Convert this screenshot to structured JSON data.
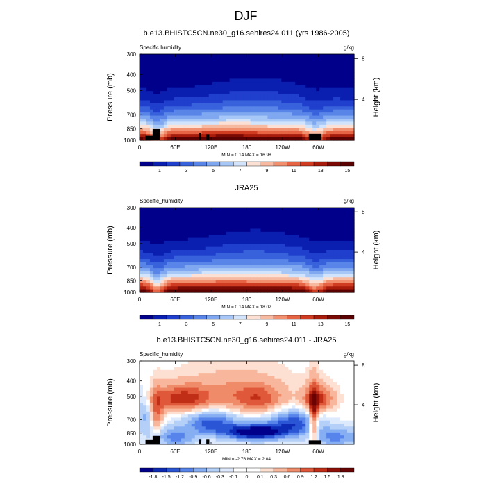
{
  "page": {
    "title": "DJF"
  },
  "colors": {
    "seq": [
      "#00008b",
      "#0a1fb0",
      "#1f3fcc",
      "#3862dc",
      "#5985e8",
      "#7fa8f0",
      "#a7c7f7",
      "#d2e4fb",
      "#fbe0d3",
      "#f7b9a0",
      "#f28f6f",
      "#e66344",
      "#cf3c22",
      "#a81c0c",
      "#7a0a03",
      "#5a0202"
    ],
    "div": [
      "#00008b",
      "#0d2ab5",
      "#2a56d6",
      "#5684eb",
      "#86aef3",
      "#b4cff8",
      "#dde9fc",
      "#ffffff",
      "#ffffff",
      "#fde0d2",
      "#f8b79c",
      "#f08b69",
      "#e0583a",
      "#c12e17",
      "#8f0f06",
      "#6a0303"
    ]
  },
  "chart_data": [
    {
      "type": "heatmap",
      "title": "b.e13.BHISTC5CN.ne30_g16.sehires24.011 (yrs 1986-2005)",
      "left_label": "Specific humidity",
      "right_label": "g/kg",
      "ylabel": "Pressure (mb)",
      "ylabel_right": "Height (km)",
      "x_ticks": [
        "0",
        "60E",
        "120E",
        "180",
        "120W",
        "60W"
      ],
      "x_tick_values": [
        0,
        60,
        120,
        180,
        240,
        300
      ],
      "xlim": [
        0,
        360
      ],
      "y_ticks": [
        "300",
        "400",
        "500",
        "700",
        "850",
        "1000"
      ],
      "y_tick_values": [
        300,
        400,
        500,
        700,
        850,
        1000
      ],
      "ylim": [
        1000,
        300
      ],
      "height_ticks": [
        "8",
        "4"
      ],
      "height_values": [
        8,
        4
      ],
      "stats": "MIN =   0.14  MAX =  16.98",
      "colorbar_labels": [
        "1",
        "3",
        "5",
        "7",
        "9",
        "11",
        "13",
        "15"
      ],
      "colorbar_levels": [
        0,
        1,
        2,
        3,
        4,
        5,
        6,
        7,
        8,
        9,
        10,
        11,
        12,
        13,
        14,
        15,
        16
      ],
      "min": 0.14,
      "max": 16.98,
      "masked_terrain": true
    },
    {
      "type": "heatmap",
      "title": "JRA25",
      "left_label": "Specific_humidity",
      "right_label": "g/kg",
      "ylabel": "Pressure (mb)",
      "ylabel_right": "Height (km)",
      "x_ticks": [
        "0",
        "60E",
        "120E",
        "180",
        "120W",
        "60W"
      ],
      "x_tick_values": [
        0,
        60,
        120,
        180,
        240,
        300
      ],
      "xlim": [
        0,
        360
      ],
      "y_ticks": [
        "300",
        "400",
        "500",
        "700",
        "850",
        "1000"
      ],
      "y_tick_values": [
        300,
        400,
        500,
        700,
        850,
        1000
      ],
      "ylim": [
        1000,
        300
      ],
      "height_ticks": [
        "8",
        "4"
      ],
      "height_values": [
        8,
        4
      ],
      "stats": "MIN =   0.14  MAX =  18.02",
      "colorbar_labels": [
        "1",
        "3",
        "5",
        "7",
        "9",
        "11",
        "13",
        "15"
      ],
      "colorbar_levels": [
        0,
        1,
        2,
        3,
        4,
        5,
        6,
        7,
        8,
        9,
        10,
        11,
        12,
        13,
        14,
        15,
        16
      ],
      "min": 0.14,
      "max": 18.02,
      "masked_terrain": false
    },
    {
      "type": "heatmap",
      "title": "b.e13.BHISTC5CN.ne30_g16.sehires24.011 - JRA25",
      "left_label": "Specific_humidity",
      "right_label": "g/kg",
      "ylabel": "Pressure (mb)",
      "ylabel_right": "Height (km)",
      "x_ticks": [
        "0",
        "60E",
        "120E",
        "180",
        "120W",
        "60W"
      ],
      "x_tick_values": [
        0,
        60,
        120,
        180,
        240,
        300
      ],
      "xlim": [
        0,
        360
      ],
      "y_ticks": [
        "300",
        "400",
        "500",
        "700",
        "850",
        "1000"
      ],
      "y_tick_values": [
        300,
        400,
        500,
        700,
        850,
        1000
      ],
      "ylim": [
        1000,
        300
      ],
      "height_ticks": [
        "8",
        "4"
      ],
      "height_values": [
        8,
        4
      ],
      "stats": "MIN =  -2.76  MAX =   2.04",
      "colorbar_labels": [
        "-1.8",
        "-1.5",
        "-1.2",
        "-0.9",
        "-0.6",
        "-0.3",
        "-0.1",
        "0",
        "0.1",
        "0.3",
        "0.6",
        "0.9",
        "1.2",
        "1.5",
        "1.8"
      ],
      "colorbar_levels": [
        -2.1,
        -1.8,
        -1.5,
        -1.2,
        -0.9,
        -0.6,
        -0.3,
        -0.1,
        0,
        0.1,
        0.3,
        0.6,
        0.9,
        1.2,
        1.5,
        1.8,
        2.1
      ],
      "min": -2.76,
      "max": 2.04,
      "masked_terrain": true
    }
  ]
}
